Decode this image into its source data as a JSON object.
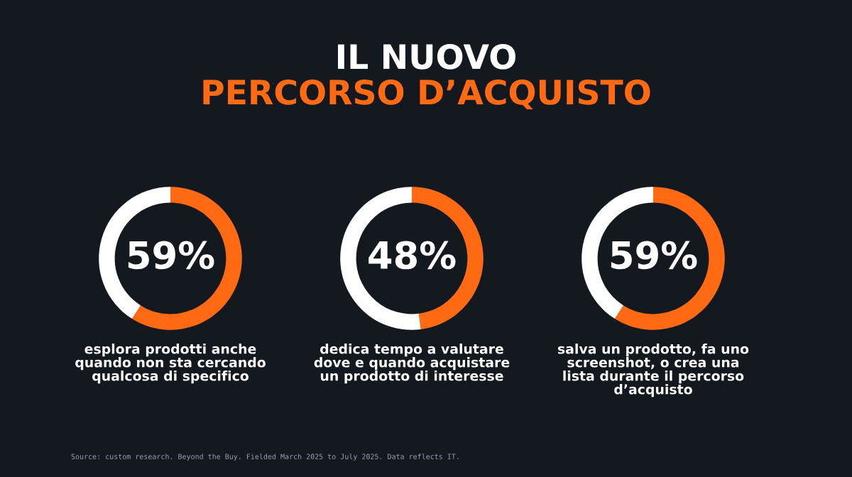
{
  "chart_data": [
    {
      "type": "other",
      "title": "IL NUOVO",
      "subtitle": "PERCORSO D’ACQUISTO",
      "annotations": [
        "Source: custom research. Beyond the Buy. Fielded March 2025 to July 2025. Data reflects IT."
      ]
    },
    {
      "type": "donut",
      "categories": [
        null,
        null
      ],
      "values": [
        59,
        41
      ],
      "colors": [
        "#ff6a13",
        "#ffffff"
      ],
      "value_labels": [
        "59%",
        null
      ],
      "annotations": [
        "esplora prodotti anche\nquando non sta cercando\nqualcosa di specifico"
      ]
    },
    {
      "type": "donut",
      "categories": [
        null,
        null
      ],
      "values": [
        48,
        52
      ],
      "colors": [
        "#ff6a13",
        "#ffffff"
      ],
      "value_labels": [
        "48%",
        null
      ],
      "annotations": [
        "dedica tempo a valutare\ndove e quando acquistare\nun prodotto di interesse"
      ]
    },
    {
      "type": "donut",
      "categories": [
        null,
        null
      ],
      "values": [
        59,
        41
      ],
      "colors": [
        "#ff6a13",
        "#ffffff"
      ],
      "value_labels": [
        "59%",
        null
      ],
      "annotations": [
        "salva un prodotto, fa uno\nscreenshot, o crea una\nlista durante il percorso\nd’acquisto"
      ]
    }
  ]
}
